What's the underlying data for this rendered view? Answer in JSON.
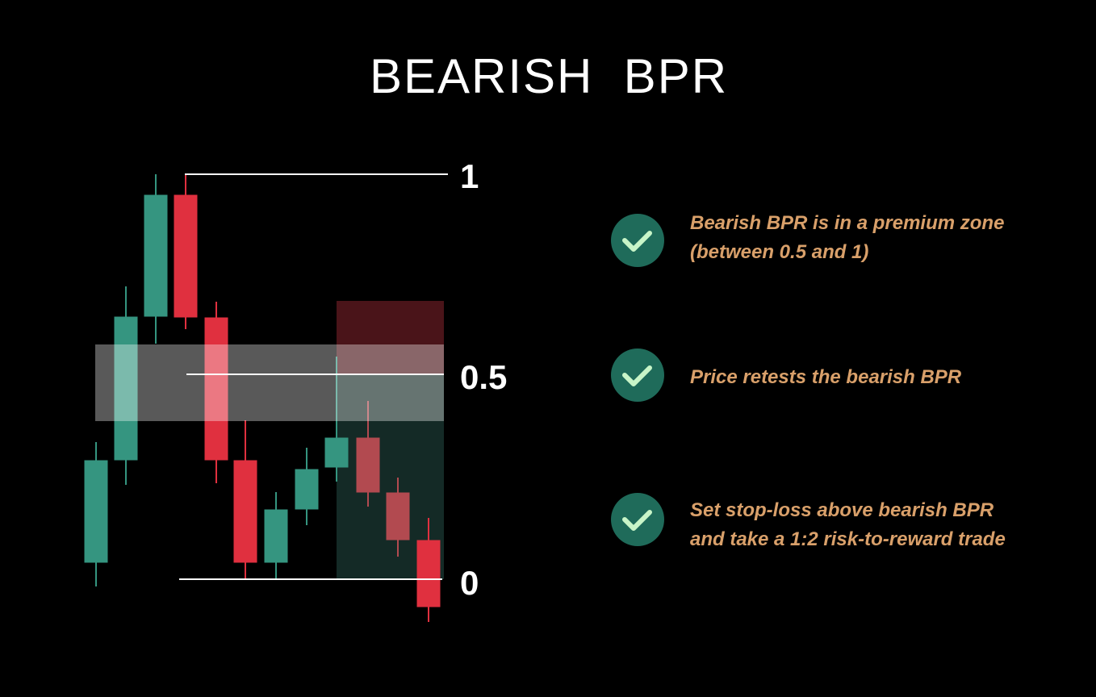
{
  "title": "BEARISH  BPR",
  "levels": [
    "1",
    "0.5",
    "0"
  ],
  "checklist": [
    {
      "lines": [
        "Bearish BPR is in a premium zone",
        "(between 0.5 and 1)"
      ]
    },
    {
      "lines": [
        "Price retests the bearish BPR"
      ]
    },
    {
      "lines": [
        "Set stop-loss above bearish BPR",
        "and take a 1:2 risk-to-reward trade"
      ]
    }
  ]
}
